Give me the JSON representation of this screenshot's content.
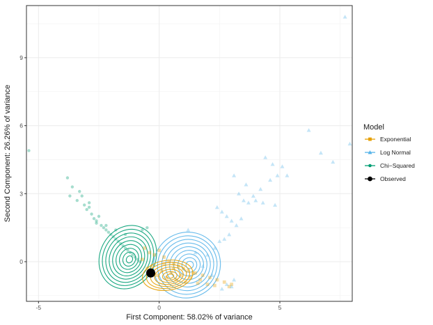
{
  "chart_data": {
    "type": "scatter",
    "xlabel": "First Component: 58.02% of variance",
    "ylabel": "Second Component: 26.26% of variance",
    "xlim": [
      -5.5,
      8.0
    ],
    "ylim": [
      -1.75,
      11.3
    ],
    "x_ticks": [
      -5,
      0,
      5
    ],
    "y_ticks": [
      0,
      3,
      6,
      9
    ],
    "x_tick_labels": [
      "-5",
      "0",
      "5"
    ],
    "y_tick_labels": [
      "0",
      "3",
      "6",
      "9"
    ],
    "grid": true,
    "legend": {
      "title": "Model",
      "position": "right",
      "entries": [
        "Exponential",
        "Log Normal",
        "Chi−Squared",
        "Observed"
      ]
    },
    "colors": {
      "Exponential": "#E69F00",
      "Log Normal": "#56B4E9",
      "Chi−Squared": "#009E73",
      "Observed": "#000000"
    },
    "series": [
      {
        "name": "Exponential",
        "marker": "square",
        "x": [
          -0.6,
          -0.4,
          -0.2,
          0.0,
          0.2,
          0.4,
          0.6,
          0.8,
          1.0,
          1.2,
          1.5,
          1.8,
          2.1,
          2.4,
          2.7,
          -0.3,
          0.1,
          0.5,
          0.9,
          1.3,
          1.7,
          -0.5,
          -0.1,
          0.3,
          0.7,
          1.1,
          1.6,
          2.0,
          2.3,
          2.9,
          3.0,
          -0.7,
          0.2,
          0.6,
          1.4
        ],
        "y": [
          0.6,
          0.4,
          0.3,
          0.5,
          0.2,
          0.0,
          -0.1,
          -0.2,
          -0.3,
          -0.4,
          -0.5,
          -0.6,
          -0.7,
          -0.8,
          -0.9,
          -0.2,
          -0.4,
          -0.5,
          -0.6,
          -0.7,
          -0.8,
          -0.3,
          -0.6,
          -0.7,
          -0.8,
          -0.9,
          -0.95,
          -1.0,
          -1.05,
          -1.1,
          -1.0,
          0.1,
          -0.1,
          -0.3,
          -0.5
        ]
      },
      {
        "name": "Log Normal",
        "marker": "triangle",
        "x": [
          7.7,
          7.9,
          6.2,
          6.7,
          7.2,
          4.4,
          4.7,
          4.9,
          5.1,
          5.3,
          4.6,
          4.2,
          4.0,
          3.6,
          3.3,
          3.1,
          3.5,
          3.9,
          4.3,
          4.8,
          2.4,
          2.6,
          2.8,
          3.0,
          3.2,
          3.4,
          3.7,
          2.9,
          2.7,
          2.5,
          2.3,
          2.0,
          1.8,
          1.5,
          1.2,
          3.0,
          2.8,
          2.6,
          3.1,
          2.2
        ],
        "y": [
          10.8,
          5.2,
          5.8,
          4.8,
          4.4,
          4.6,
          4.3,
          3.8,
          4.2,
          3.8,
          3.6,
          3.2,
          2.7,
          3.4,
          3.0,
          3.8,
          2.7,
          2.9,
          2.6,
          2.5,
          2.4,
          2.2,
          2.0,
          1.8,
          1.6,
          1.9,
          2.6,
          1.2,
          1.0,
          0.9,
          0.6,
          0.3,
          -0.2,
          0.4,
          1.4,
          -1.1,
          -1.0,
          -1.2,
          -0.8,
          -0.6
        ]
      },
      {
        "name": "Chi−Squared",
        "marker": "circle",
        "x": [
          -5.4,
          -3.8,
          -3.7,
          -3.4,
          -3.3,
          -3.2,
          -3.1,
          -3.0,
          -2.9,
          -2.8,
          -2.7,
          -2.6,
          -2.5,
          -2.4,
          -2.3,
          -2.2,
          -2.1,
          -2.0,
          -1.9,
          -1.8,
          -1.7,
          -1.6,
          -1.5,
          -1.4,
          -1.3,
          -1.2,
          -1.1,
          -1.0,
          -0.9,
          -0.8,
          -2.6,
          -2.2,
          -1.8,
          -1.4,
          -0.7,
          -0.5,
          -3.6,
          -2.9
        ],
        "y": [
          4.9,
          3.7,
          2.9,
          2.7,
          3.1,
          2.9,
          2.5,
          2.3,
          2.4,
          2.1,
          1.9,
          1.7,
          2.0,
          1.6,
          1.5,
          1.4,
          1.3,
          1.2,
          1.1,
          1.0,
          0.9,
          0.8,
          0.7,
          0.6,
          0.5,
          0.4,
          0.3,
          0.2,
          0.1,
          0.0,
          1.8,
          1.6,
          1.4,
          1.2,
          1.4,
          1.5,
          3.3,
          2.6
        ]
      },
      {
        "name": "Observed",
        "marker": "circle-large",
        "x": [
          -0.35
        ],
        "y": [
          -0.5
        ]
      }
    ]
  }
}
